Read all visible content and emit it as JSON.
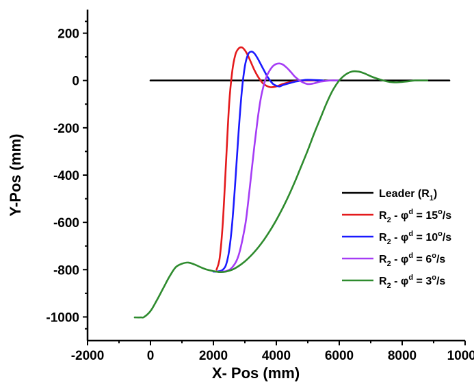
{
  "chart_data": {
    "type": "line",
    "title": "",
    "xlabel": "X- Pos (mm)",
    "ylabel": "Y-Pos (mm)",
    "xlim": [
      -2000,
      10000
    ],
    "ylim": [
      -1100,
      300
    ],
    "xticks": [
      -2000,
      0,
      2000,
      4000,
      6000,
      8000,
      10000
    ],
    "yticks": [
      200,
      0,
      -200,
      -400,
      -600,
      -800,
      -1000
    ],
    "xtick_labels": [
      "-2000",
      "0",
      "2000",
      "4000",
      "6000",
      "8000",
      "10000"
    ],
    "ytick_labels": [
      "200",
      "0",
      "-200",
      "-400",
      "-600",
      "-800",
      "-1000"
    ],
    "grid": false,
    "legend_position": "bottom-right",
    "series": [
      {
        "id": "leader",
        "legend": {
          "main": "Leader (R",
          "sub": "1",
          "tail": ")"
        },
        "color": "#000000",
        "x": [
          0,
          9500
        ],
        "y": [
          0,
          0
        ]
      },
      {
        "id": "r2-15",
        "legend": {
          "main": "R",
          "sub": "2",
          "mid": " - φ",
          "sup": "d",
          "rest": " = 15",
          "sup2": "o",
          "tail": "/s"
        },
        "color": "#e41a1c",
        "x": [
          2100,
          2200,
          2300,
          2400,
          2500,
          2600,
          2700,
          2800,
          2900,
          3000,
          3100,
          3200,
          3300,
          3400,
          3500,
          3600,
          3800,
          4000,
          4200,
          4500,
          4800,
          5200
        ],
        "y": [
          -800,
          -750,
          -600,
          -350,
          -100,
          40,
          110,
          135,
          140,
          128,
          105,
          75,
          45,
          20,
          0,
          -15,
          -28,
          -25,
          -15,
          -5,
          0,
          0
        ]
      },
      {
        "id": "r2-10",
        "legend": {
          "main": "R",
          "sub": "2",
          "mid": " - φ",
          "sup": "d",
          "rest": " = 10",
          "sup2": "o",
          "tail": "/s"
        },
        "color": "#1a1aff",
        "x": [
          2000,
          2100,
          2200,
          2300,
          2400,
          2500,
          2600,
          2700,
          2800,
          2900,
          3000,
          3100,
          3200,
          3300,
          3400,
          3500,
          3600,
          3700,
          3800,
          3900,
          4000,
          4100,
          4200,
          4400,
          4600,
          4800,
          5000,
          5500
        ],
        "y": [
          -808,
          -808,
          -806,
          -800,
          -780,
          -720,
          -600,
          -420,
          -220,
          -50,
          60,
          110,
          122,
          115,
          95,
          70,
          45,
          20,
          0,
          -15,
          -22,
          -25,
          -20,
          -12,
          -5,
          0,
          3,
          0
        ]
      },
      {
        "id": "r2-6",
        "legend": {
          "main": "R",
          "sub": "2",
          "mid": " - φ",
          "sup": "d",
          "rest": " = 6",
          "sup2": "o",
          "tail": "/s"
        },
        "color": "#a53cf5",
        "x": [
          2200,
          2400,
          2600,
          2800,
          3000,
          3100,
          3200,
          3300,
          3400,
          3500,
          3600,
          3700,
          3800,
          3900,
          4000,
          4100,
          4200,
          4300,
          4400,
          4500,
          4600,
          4800,
          5000,
          5200,
          5400,
          5700,
          6000
        ],
        "y": [
          -808,
          -806,
          -790,
          -740,
          -620,
          -520,
          -400,
          -280,
          -170,
          -80,
          -20,
          20,
          45,
          62,
          70,
          72,
          68,
          58,
          45,
          30,
          15,
          -5,
          -15,
          -12,
          -5,
          0,
          0
        ]
      },
      {
        "id": "r2-3",
        "legend": {
          "main": "R",
          "sub": "2",
          "mid": " - φ",
          "sup": "d",
          "rest": " = 3",
          "sup2": "o",
          "tail": "/s"
        },
        "color": "#2e8b2e",
        "x": [
          -500,
          -300,
          -200,
          0,
          200,
          400,
          600,
          800,
          1000,
          1200,
          1400,
          1600,
          1800,
          2000,
          2200,
          2400,
          2600,
          2800,
          3000,
          3200,
          3400,
          3600,
          3800,
          4000,
          4200,
          4400,
          4600,
          4800,
          5000,
          5200,
          5400,
          5600,
          5800,
          6000,
          6200,
          6400,
          6600,
          6800,
          7000,
          7200,
          7400,
          7600,
          7800,
          8000,
          8200,
          8400,
          8600,
          8800
        ],
        "y": [
          -1002,
          -1002,
          -1000,
          -975,
          -930,
          -880,
          -830,
          -790,
          -775,
          -770,
          -778,
          -790,
          -800,
          -806,
          -810,
          -808,
          -800,
          -785,
          -765,
          -740,
          -710,
          -675,
          -635,
          -590,
          -540,
          -485,
          -425,
          -360,
          -295,
          -225,
          -160,
          -95,
          -40,
          0,
          25,
          38,
          38,
          30,
          18,
          8,
          0,
          -6,
          -8,
          -6,
          -3,
          0,
          0,
          0
        ]
      }
    ]
  }
}
